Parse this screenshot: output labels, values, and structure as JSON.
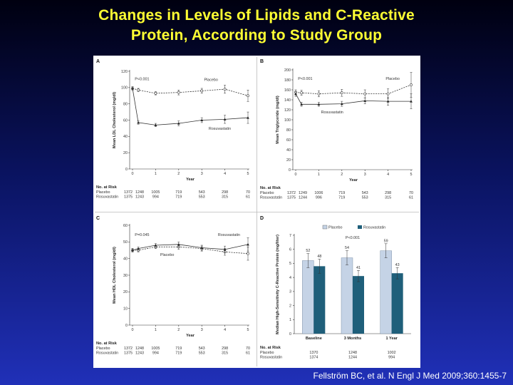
{
  "slide": {
    "title_line1": "Changes in Levels of Lipids and C-Reactive",
    "title_line2": "Protein, According to Study Group",
    "citation": "Fellström BC, et al. N Engl J Med 2009;360:1455-7"
  },
  "colors": {
    "title": "#ffff33",
    "placebo_bar": "#c5d3e6",
    "rosuvastatin_bar": "#1f5f7a",
    "line": "#333333"
  },
  "chart_data": [
    {
      "panel": "A",
      "type": "line",
      "ylabel": "Mean LDL Cholesterol (mg/dl)",
      "xlabel": "Year",
      "ylim": [
        0,
        120
      ],
      "yticks": [
        0,
        20,
        40,
        60,
        80,
        100,
        120
      ],
      "x": [
        0,
        0.25,
        1,
        2,
        3,
        4,
        5
      ],
      "xticks": [
        0,
        1,
        2,
        3,
        4,
        5
      ],
      "series": [
        {
          "name": "Placebo",
          "marker": "open",
          "values": [
            99,
            97,
            93,
            94,
            96,
            98,
            90
          ],
          "err": [
            2,
            2,
            2,
            3,
            3,
            5,
            7
          ]
        },
        {
          "name": "Rosuvastatin",
          "marker": "filled",
          "values": [
            99,
            57,
            54,
            56,
            60,
            61,
            63
          ],
          "err": [
            2,
            2,
            2,
            3,
            3,
            5,
            7
          ]
        }
      ],
      "annotations": [
        {
          "text": "P<0.001",
          "x": 0.1,
          "y": 109
        },
        {
          "text": "Placebo",
          "x": 3.1,
          "y": 108
        },
        {
          "text": "Rosuvastatin",
          "x": 3.3,
          "y": 48
        }
      ],
      "risk": {
        "title": "No. at Risk",
        "rows": [
          {
            "label": "Placebo",
            "values": [
              "1372",
              "1248",
              "1005",
              "719",
              "543",
              "298",
              "70"
            ]
          },
          {
            "label": "Rosuvastatin",
            "values": [
              "1375",
              "1243",
              "994",
              "719",
              "553",
              "315",
              "61"
            ]
          }
        ]
      }
    },
    {
      "panel": "B",
      "type": "line",
      "ylabel": "Mean Triglyceride (mg/dl)",
      "xlabel": "Year",
      "ylim": [
        0,
        200
      ],
      "yticks": [
        0,
        20,
        40,
        60,
        80,
        100,
        120,
        140,
        160,
        180,
        200
      ],
      "x": [
        0,
        0.25,
        1,
        2,
        3,
        4,
        5
      ],
      "xticks": [
        0,
        1,
        2,
        3,
        4,
        5
      ],
      "series": [
        {
          "name": "Placebo",
          "marker": "open",
          "values": [
            155,
            154,
            152,
            154,
            152,
            152,
            170
          ],
          "err": [
            5,
            5,
            6,
            7,
            8,
            10,
            25
          ]
        },
        {
          "name": "Rosuvastatin",
          "marker": "filled",
          "values": [
            152,
            131,
            131,
            132,
            138,
            137,
            137
          ],
          "err": [
            5,
            4,
            4,
            5,
            6,
            8,
            15
          ]
        }
      ],
      "annotations": [
        {
          "text": "P<0.001",
          "x": 0.1,
          "y": 180
        },
        {
          "text": "Placebo",
          "x": 3.9,
          "y": 180
        },
        {
          "text": "Rosuvastatin",
          "x": 1.1,
          "y": 113
        }
      ],
      "risk": {
        "title": "No. at Risk",
        "rows": [
          {
            "label": "Placebo",
            "values": [
              "1372",
              "1249",
              "1006",
              "719",
              "543",
              "298",
              "70"
            ]
          },
          {
            "label": "Rosuvastatin",
            "values": [
              "1375",
              "1244",
              "996",
              "719",
              "553",
              "315",
              "61"
            ]
          }
        ]
      }
    },
    {
      "panel": "C",
      "type": "line",
      "ylabel": "Mean HDL Cholesterol (mg/dl)",
      "xlabel": "Year",
      "ylim": [
        0,
        60
      ],
      "yticks": [
        0,
        10,
        20,
        30,
        40,
        50,
        60
      ],
      "x": [
        0,
        0.25,
        1,
        2,
        3,
        4,
        5
      ],
      "xticks": [
        0,
        1,
        2,
        3,
        4,
        5
      ],
      "series": [
        {
          "name": "Placebo",
          "marker": "open",
          "values": [
            45,
            45,
            47,
            47,
            46,
            44,
            43
          ],
          "err": [
            1,
            1,
            1,
            1.5,
            1.5,
            2,
            4
          ]
        },
        {
          "name": "Rosuvastatin",
          "marker": "filled",
          "values": [
            45,
            46,
            48,
            48.5,
            46.5,
            45.5,
            48.5
          ],
          "err": [
            1,
            1,
            1,
            1.5,
            1.5,
            2,
            4
          ]
        }
      ],
      "annotations": [
        {
          "text": "P=0.045",
          "x": 0.1,
          "y": 53.5
        },
        {
          "text": "Rosuvastatin",
          "x": 3.7,
          "y": 53.5
        },
        {
          "text": "Placebo",
          "x": 1.2,
          "y": 41.5
        }
      ],
      "risk": {
        "title": "No. at Risk",
        "rows": [
          {
            "label": "Placebo",
            "values": [
              "1372",
              "1248",
              "1005",
              "719",
              "543",
              "298",
              "70"
            ]
          },
          {
            "label": "Rosuvastatin",
            "values": [
              "1375",
              "1243",
              "994",
              "719",
              "553",
              "315",
              "61"
            ]
          }
        ]
      }
    },
    {
      "panel": "D",
      "type": "bar",
      "ylabel": "Median High-Sensitivity C-Reactive Protein (mg/liter)",
      "ylim": [
        0,
        7
      ],
      "yticks": [
        0,
        1,
        2,
        3,
        4,
        5,
        6,
        7
      ],
      "categories": [
        "Baseline",
        "3 Months",
        "1 Year"
      ],
      "legend": [
        "Placebo",
        "Rosuvastatin"
      ],
      "series": [
        {
          "name": "Placebo",
          "values": [
            5.2,
            5.4,
            5.9
          ],
          "err_high": [
            5.7,
            5.9,
            6.4
          ],
          "err_low": [
            4.7,
            4.9,
            5.4
          ],
          "n_labels": [
            "52",
            "54",
            "59"
          ]
        },
        {
          "name": "Rosuvastatin",
          "values": [
            4.8,
            4.1,
            4.3
          ],
          "err_high": [
            5.3,
            4.5,
            4.7
          ],
          "err_low": [
            4.3,
            3.7,
            3.9
          ],
          "n_labels": [
            "48",
            "41",
            "43"
          ]
        }
      ],
      "annotations": [
        {
          "text": "P<0.001",
          "category": "3 Months"
        }
      ],
      "risk": {
        "title": "No. at Risk",
        "rows": [
          {
            "label": "Placebo",
            "values": [
              "1370",
              "1248",
              "1002"
            ]
          },
          {
            "label": "Rosuvastatin",
            "values": [
              "1374",
              "1244",
              "994"
            ]
          }
        ]
      }
    }
  ]
}
